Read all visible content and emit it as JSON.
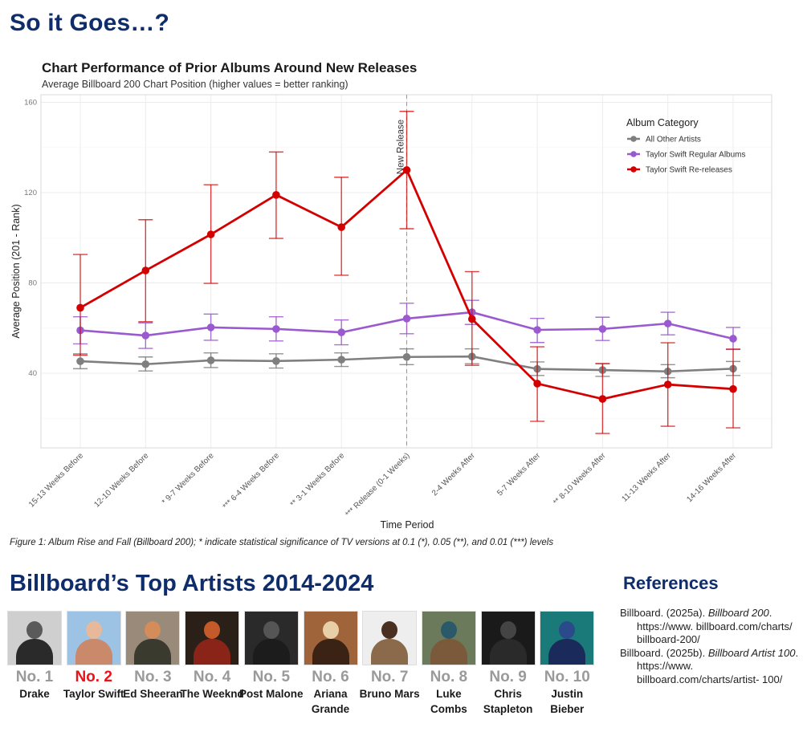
{
  "page": {
    "title": "So it Goes…?",
    "caption": "Figure 1: Album Rise and Fall (Billboard 200); * indicate statistical significance of TV versions at 0.1 (*), 0.05 (**), and 0.01 (***) levels"
  },
  "chart_data": {
    "type": "line",
    "title": "Chart Performance of Prior Albums Around New Releases",
    "subtitle": "Average Billboard 200 Chart Position (higher values = better ranking)",
    "xlabel": "Time Period",
    "ylabel": "Average Position (201 - Rank)",
    "ylim": [
      7,
      163
    ],
    "yticks": [
      40,
      80,
      120,
      160
    ],
    "grid": true,
    "legend": {
      "title": "Album Category",
      "position": "top-right-inside"
    },
    "annotation": {
      "text": "New Release",
      "x_index": 5,
      "style": "dashed vertical line"
    },
    "categories": [
      "15-13 Weeks Before",
      "12-10 Weeks Before",
      "9-7 Weeks Before",
      "6-4 Weeks Before",
      "3-1 Weeks Before",
      "Release (0-1 Weeks)",
      "2-4 Weeks After",
      "5-7 Weeks After",
      "8-10 Weeks After",
      "11-13 Weeks After",
      "14-16 Weeks After"
    ],
    "significance": [
      "",
      "",
      "*",
      "***",
      "**",
      "***",
      "",
      "",
      "**",
      "",
      ""
    ],
    "series": [
      {
        "name": "All Other Artists",
        "color": "#7f7f7f",
        "values": [
          45.3,
          44.0,
          45.7,
          45.4,
          46.0,
          47.2,
          47.4,
          41.9,
          41.4,
          40.8,
          42.0
        ],
        "err_low": [
          42.0,
          41.0,
          42.5,
          42.3,
          43.0,
          43.8,
          44.2,
          39.0,
          38.6,
          38.0,
          39.0
        ],
        "err_high": [
          48.6,
          47.2,
          49.0,
          48.6,
          49.0,
          50.8,
          50.8,
          45.0,
          44.2,
          43.8,
          45.2
        ]
      },
      {
        "name": "Taylor Swift Regular Albums",
        "color": "#9b59d0",
        "values": [
          59.0,
          56.7,
          60.3,
          59.6,
          58.1,
          64.2,
          67.0,
          59.2,
          59.6,
          62.0,
          55.3
        ],
        "err_low": [
          53.0,
          51.0,
          54.6,
          54.3,
          52.6,
          57.5,
          61.6,
          53.6,
          54.5,
          57.0,
          50.5
        ],
        "err_high": [
          65.0,
          62.3,
          66.2,
          65.0,
          63.6,
          71.0,
          72.3,
          64.3,
          64.8,
          67.0,
          60.3
        ]
      },
      {
        "name": "Taylor Swift Re-releases",
        "color": "#d40000",
        "values": [
          69.0,
          85.5,
          101.5,
          119.0,
          104.7,
          130.0,
          64.0,
          35.4,
          28.6,
          35.0,
          33.0
        ],
        "err_low": [
          48.0,
          62.8,
          79.8,
          99.7,
          83.4,
          104.0,
          43.5,
          18.7,
          13.3,
          16.5,
          15.8
        ],
        "err_high": [
          92.6,
          108.0,
          123.5,
          138.0,
          126.8,
          156.0,
          85.0,
          51.7,
          44.3,
          53.5,
          50.7
        ]
      }
    ]
  },
  "artists_section": {
    "title": "Billboard’s Top Artists 2014-2024",
    "artists": [
      {
        "rank": "No. 1",
        "name": "Drake",
        "highlight": false
      },
      {
        "rank": "No. 2",
        "name": "Taylor Swift",
        "highlight": true
      },
      {
        "rank": "No. 3",
        "name": "Ed Sheeran",
        "highlight": false
      },
      {
        "rank": "No. 4",
        "name": "The Weeknd",
        "highlight": false
      },
      {
        "rank": "No. 5",
        "name": "Post Malone",
        "highlight": false
      },
      {
        "rank": "No. 6",
        "name": "Ariana Grande",
        "highlight": false
      },
      {
        "rank": "No. 7",
        "name": "Bruno Mars",
        "highlight": false
      },
      {
        "rank": "No. 8",
        "name": "Luke Combs",
        "highlight": false
      },
      {
        "rank": "No. 9",
        "name": "Chris Stapleton",
        "highlight": false
      },
      {
        "rank": "No. 10",
        "name": "Justin Bieber",
        "highlight": false
      }
    ]
  },
  "references": {
    "title": "References",
    "items": [
      {
        "prefix": "Billboard. (2025a). ",
        "title": "Billboard 200",
        "suffix": ". https://www. billboard.com/charts/ billboard-200/"
      },
      {
        "prefix": "Billboard. (2025b). ",
        "title": "Billboard Artist 100",
        "suffix": ". https://www. billboard.com/charts/artist- 100/"
      }
    ]
  },
  "colors": {
    "heading": "#0f2d6b",
    "highlight_rank": "#e8141c",
    "rank_gray": "#9a9a9a"
  }
}
